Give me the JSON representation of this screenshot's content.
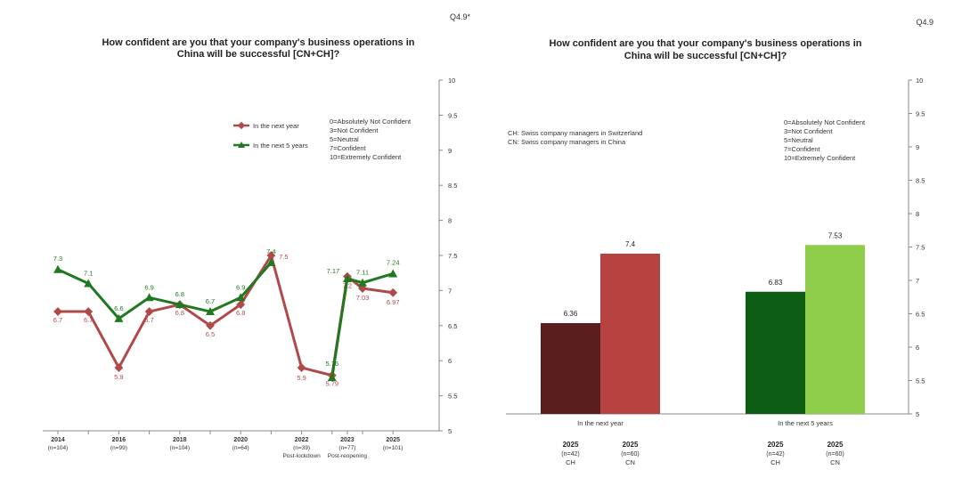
{
  "chart_data": [
    {
      "type": "line",
      "question_code": "Q4.9*",
      "title_line1": "How confident are you that your company's business operations in",
      "title_line2": "China will be successful [CN+CH]?",
      "ylim": [
        5,
        10
      ],
      "yticks": [
        "10",
        "9.5",
        "9",
        "8.5",
        "8",
        "7.5",
        "7",
        "6.5",
        "6",
        "5.5",
        "5"
      ],
      "ytick_values": [
        10,
        9.5,
        9,
        8.5,
        8,
        7.5,
        7,
        6.5,
        6,
        5.5,
        5
      ],
      "x": [
        2014,
        2015,
        2016,
        2017,
        2018,
        2019,
        2020,
        2021,
        2022,
        2023,
        2023.5,
        2024,
        2025
      ],
      "x_labels": [
        {
          "year": "2014",
          "n": "(n=104)",
          "note": "",
          "x": 2014
        },
        {
          "year": "2016",
          "n": "(n=99)",
          "note": "",
          "x": 2016
        },
        {
          "year": "2018",
          "n": "(n=104)",
          "note": "",
          "x": 2018
        },
        {
          "year": "2020",
          "n": "(n=64)",
          "note": "",
          "x": 2020
        },
        {
          "year": "2022",
          "n": "(n=39)",
          "note": "Post-lockdown",
          "x": 2022
        },
        {
          "year": "2023",
          "n": "(n=77)",
          "note": "Post-reopening",
          "x": 2023.5
        },
        {
          "year": "2025",
          "n": "(n=101)",
          "note": "",
          "x": 2025
        }
      ],
      "series": [
        {
          "name": "In the next year",
          "color": "#b04a4a",
          "values": [
            6.7,
            6.7,
            5.9,
            6.7,
            6.8,
            6.5,
            6.8,
            7.5,
            5.9,
            5.79,
            7.2,
            7.03,
            6.97
          ],
          "labels": [
            "6.7",
            "6.7",
            "5.9",
            "6.7",
            "6.8",
            "6.5",
            "6.8",
            "7.5",
            "5.9",
            "5.79",
            "7.2",
            "7.03",
            "6.97"
          ]
        },
        {
          "name": "In the next 5 years",
          "color": "#1f7a1f",
          "values": [
            7.3,
            7.1,
            6.6,
            6.9,
            6.8,
            6.7,
            6.9,
            7.4,
            null,
            5.76,
            7.17,
            7.11,
            7.24
          ],
          "labels": [
            "7.3",
            "7.1",
            "6.6",
            "6.9",
            "6.8",
            "6.7",
            "6.9",
            "7.4",
            "",
            "5.76",
            "7.17",
            "7.11",
            "7.24"
          ]
        }
      ],
      "scale_legend": [
        "0=Absolutely Not Confident",
        "3=Not Confident",
        "5=Neutral",
        "7=Confident",
        "10=Extremely Confident"
      ]
    },
    {
      "type": "bar",
      "question_code": "Q4.9",
      "title_line1": "How confident are you that your company's business operations in",
      "title_line2": "China will be successful [CN+CH]?",
      "ylim": [
        5,
        10
      ],
      "yticks": [
        "10",
        "9.5",
        "9",
        "8.5",
        "8",
        "7.5",
        "7",
        "6.5",
        "6",
        "5.5",
        "5"
      ],
      "ytick_values": [
        10,
        9.5,
        9,
        8.5,
        8,
        7.5,
        7,
        6.5,
        6,
        5.5,
        5
      ],
      "notes": [
        "CH: Swiss company managers in Switzerland",
        "CN: Swiss company managers in China"
      ],
      "categories": [
        "In the next year",
        "In the next 5 years"
      ],
      "series": [
        {
          "name": "CH",
          "year": "2025",
          "n": "(n=42)",
          "values": [
            6.36,
            6.83
          ],
          "labels": [
            "6.36",
            "6.83"
          ],
          "colors": [
            "#5a1e1e",
            "#0d5e12"
          ]
        },
        {
          "name": "CN",
          "year": "2025",
          "n": "(n=60)",
          "values": [
            7.4,
            7.53
          ],
          "labels": [
            "7.4",
            "7.53"
          ],
          "colors": [
            "#b64340",
            "#8fce4a"
          ]
        }
      ],
      "scale_legend": [
        "0=Absolutely Not Confident",
        "3=Not Confident",
        "5=Neutral",
        "7=Confident",
        "10=Extremely Confident"
      ]
    }
  ]
}
